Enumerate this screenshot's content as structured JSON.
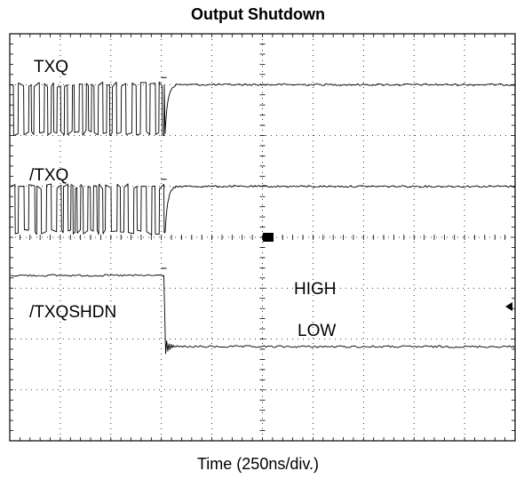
{
  "chart_data": {
    "type": "line",
    "title": "Output Shutdown",
    "xlabel": "Time (250ns/div.)",
    "ylabel": "",
    "grid": true,
    "divisions": {
      "x": 10,
      "y": 8
    },
    "xlim": [
      0,
      10
    ],
    "ylim": [
      0,
      8
    ],
    "event_x_div": 3.05,
    "traces": [
      {
        "name": "TXQ",
        "before": "toggling",
        "after": "high",
        "y_high_div": 7.0,
        "y_low_div": 6.05
      },
      {
        "name": "/TXQ",
        "before": "toggling",
        "after": "high",
        "y_high_div": 5.0,
        "y_low_div": 4.1
      },
      {
        "name": "/TXQSHDN",
        "before": "high",
        "after": "low",
        "y_high_div": 3.25,
        "y_low_div": 1.85
      }
    ],
    "annotations": [
      {
        "text": "HIGH"
      },
      {
        "text": "LOW"
      }
    ]
  }
}
